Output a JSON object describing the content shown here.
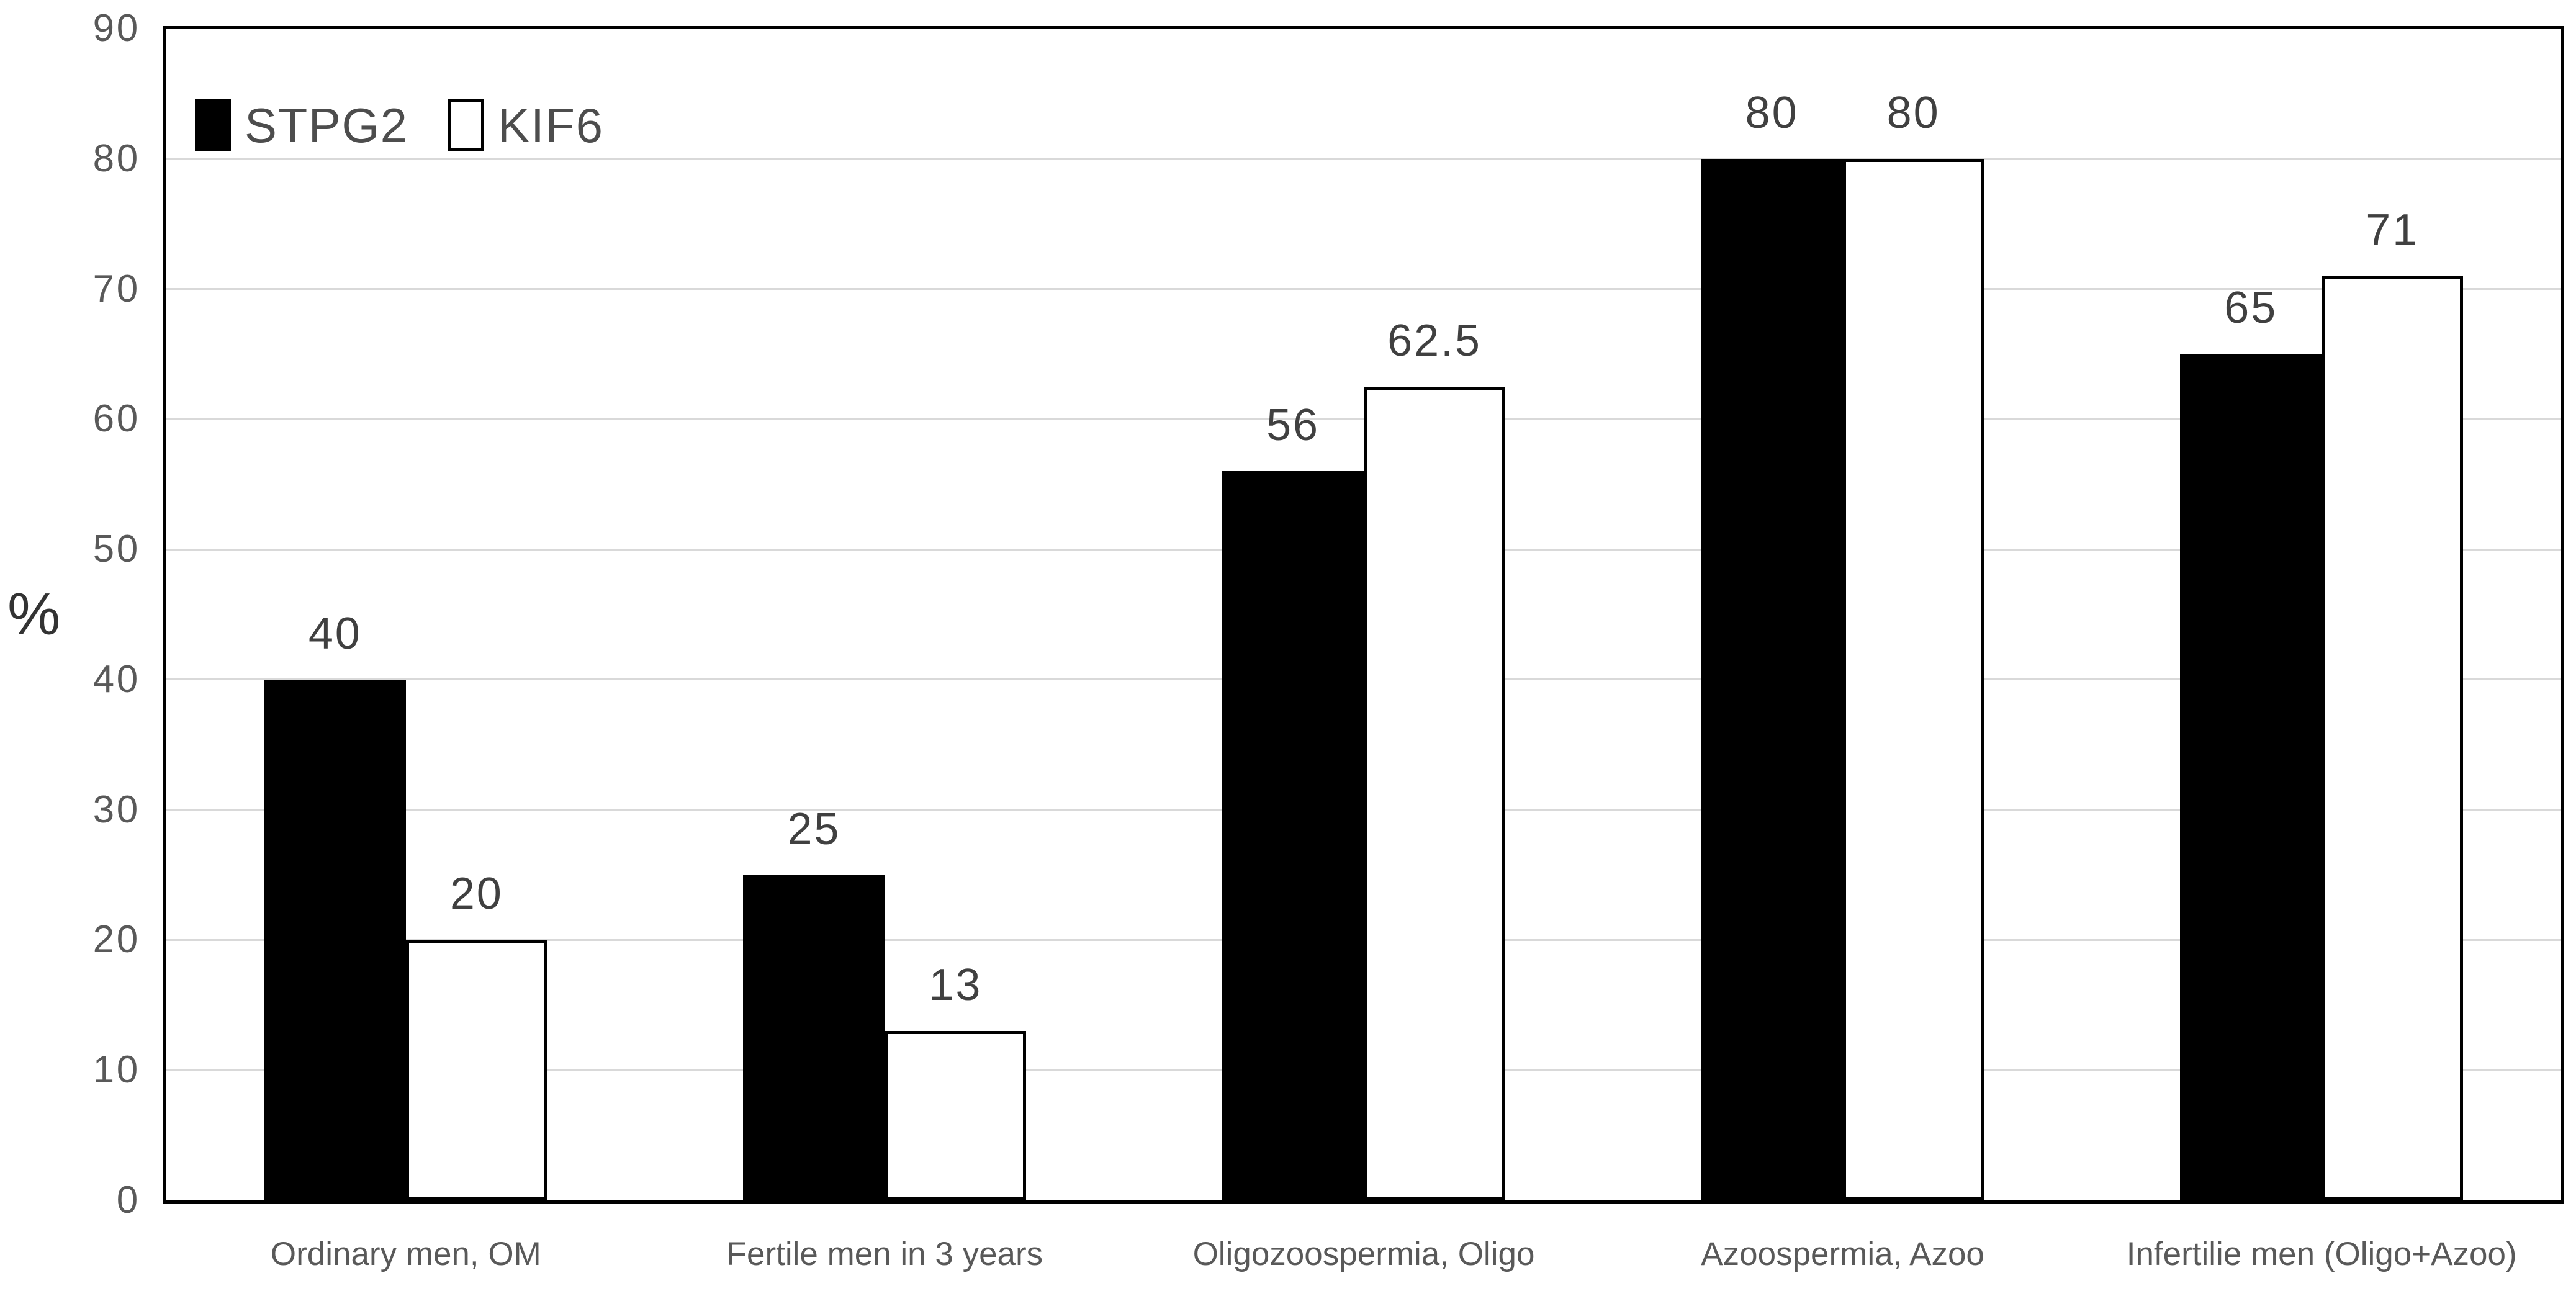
{
  "chart_data": {
    "type": "bar",
    "title": "",
    "ylabel": "%",
    "xlabel": "",
    "ylim": [
      0,
      90
    ],
    "yticks": [
      0,
      10,
      20,
      30,
      40,
      50,
      60,
      70,
      80,
      90
    ],
    "grid": true,
    "legend_position": "top-left-inside",
    "categories": [
      "Ordinary men, OM",
      "Fertile men in 3 years",
      "Oligozoospermia, Oligo",
      "Azoospermia, Azoo",
      "Infertilie men (Oligo+Azoo)"
    ],
    "series": [
      {
        "name": "STPG2",
        "fill": "#000000",
        "stroke": "#000000",
        "values": [
          40,
          25,
          56,
          80,
          65
        ]
      },
      {
        "name": "KIF6",
        "fill": "#FFFFFF",
        "stroke": "#000000",
        "values": [
          20,
          13,
          62.5,
          80,
          71
        ]
      }
    ],
    "colors": {
      "background": "#FFFFFF",
      "axis_line": "#000000",
      "gridline": "#D9D9D9",
      "axis_text": "#595959",
      "data_label_text": "#404040",
      "legend_text": "#4D4D4D"
    }
  }
}
